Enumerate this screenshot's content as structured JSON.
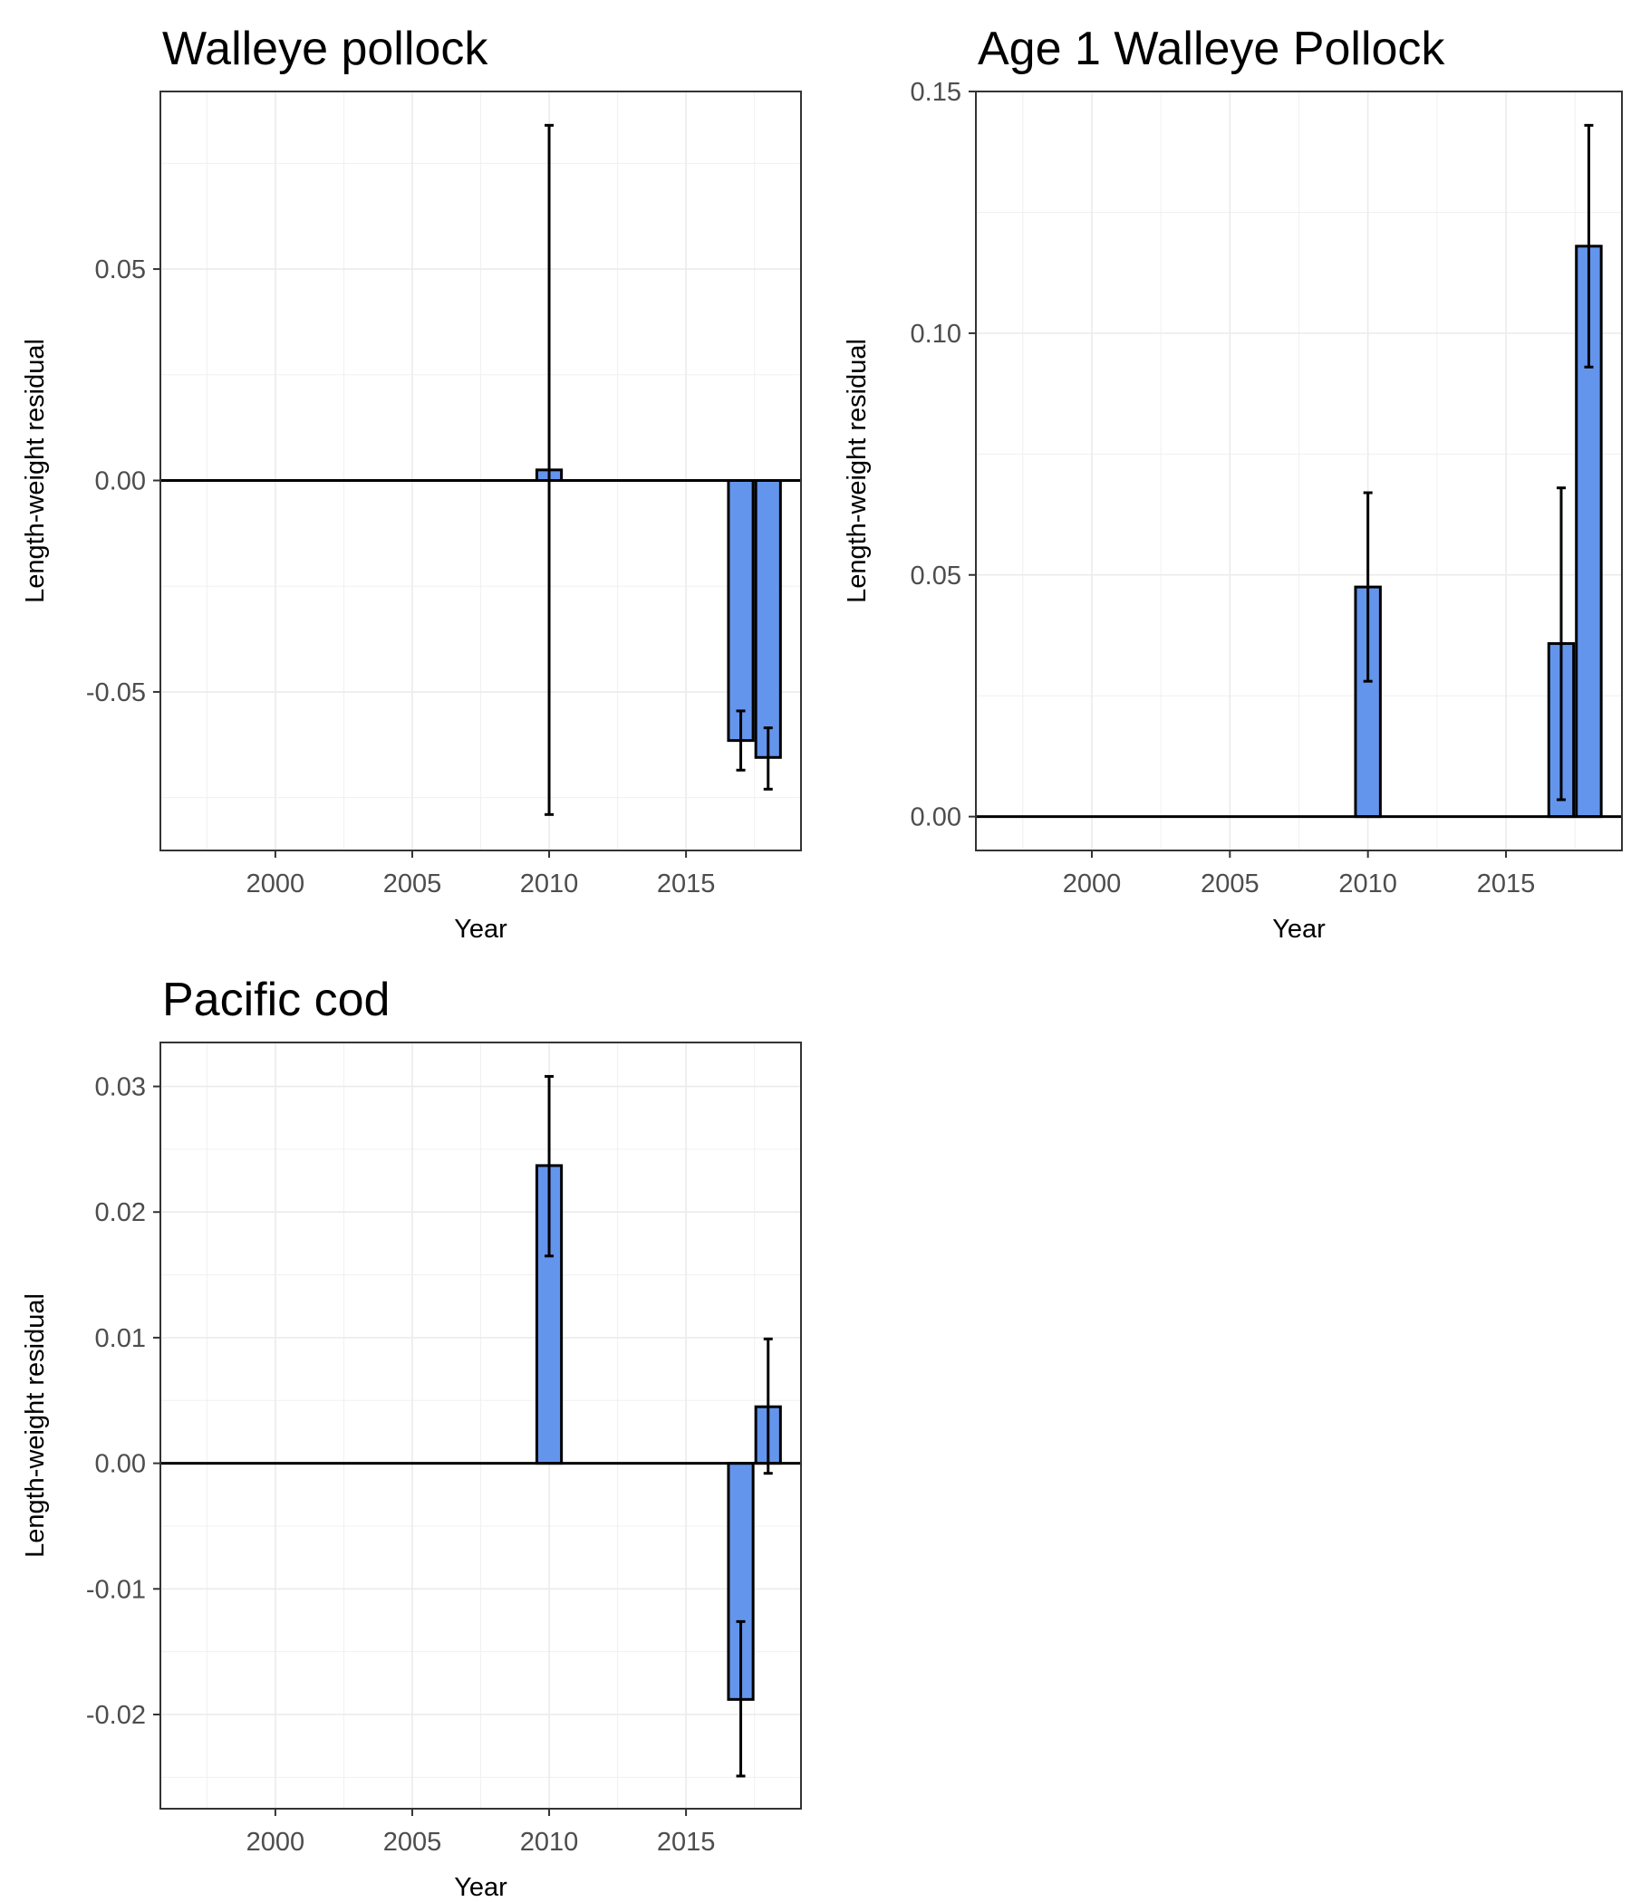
{
  "chart_data": [
    {
      "type": "bar",
      "title": "Walleye pollock",
      "xlabel": "Year",
      "ylabel": "Length-weight residual",
      "xlim": [
        1995.8,
        2019.2
      ],
      "ylim": [
        -0.0875,
        0.092
      ],
      "xticks": [
        2000,
        2005,
        2010,
        2015
      ],
      "xtick_labels": [
        "2000",
        "2005",
        "2010",
        "2015"
      ],
      "yticks": [
        -0.05,
        0,
        0.05
      ],
      "ytick_labels": [
        "-0.05",
        "0.00",
        "0.05"
      ],
      "grid": true,
      "bar_color": "#6495ed",
      "bars": [
        {
          "year": 2010,
          "value": 0.0025,
          "lower": -0.079,
          "upper": 0.084
        },
        {
          "year": 2017,
          "value": -0.0615,
          "lower": -0.0685,
          "upper": -0.0545
        },
        {
          "year": 2018,
          "value": -0.0655,
          "lower": -0.073,
          "upper": -0.0585
        }
      ]
    },
    {
      "type": "bar",
      "title": "Age 1 Walleye Pollock",
      "xlabel": "Year",
      "ylabel": "Length-weight residual",
      "xlim": [
        1995.8,
        2019.2
      ],
      "ylim": [
        -0.007,
        0.15
      ],
      "xticks": [
        2000,
        2005,
        2010,
        2015
      ],
      "xtick_labels": [
        "2000",
        "2005",
        "2010",
        "2015"
      ],
      "yticks": [
        0,
        0.05,
        0.1,
        0.15
      ],
      "ytick_labels": [
        "0.00",
        "0.05",
        "0.10",
        "0.15"
      ],
      "grid": true,
      "bar_color": "#6495ed",
      "bars": [
        {
          "year": 2010,
          "value": 0.0475,
          "lower": 0.028,
          "upper": 0.067
        },
        {
          "year": 2017,
          "value": 0.0358,
          "lower": 0.0035,
          "upper": 0.068
        },
        {
          "year": 2018,
          "value": 0.118,
          "lower": 0.093,
          "upper": 0.143
        }
      ]
    },
    {
      "type": "bar",
      "title": "Pacific cod",
      "xlabel": "Year",
      "ylabel": "Length-weight residual",
      "xlim": [
        1995.8,
        2019.2
      ],
      "ylim": [
        -0.0275,
        0.0335
      ],
      "xticks": [
        2000,
        2005,
        2010,
        2015
      ],
      "xtick_labels": [
        "2000",
        "2005",
        "2010",
        "2015"
      ],
      "yticks": [
        -0.02,
        -0.01,
        0,
        0.01,
        0.02,
        0.03
      ],
      "ytick_labels": [
        "-0.02",
        "-0.01",
        "0.00",
        "0.01",
        "0.02",
        "0.03"
      ],
      "grid": true,
      "bar_color": "#6495ed",
      "bars": [
        {
          "year": 2010,
          "value": 0.0237,
          "lower": 0.0165,
          "upper": 0.0308
        },
        {
          "year": 2017,
          "value": -0.0188,
          "lower": -0.0249,
          "upper": -0.0126
        },
        {
          "year": 2018,
          "value": 0.0045,
          "lower": -0.0008,
          "upper": 0.0099
        }
      ]
    }
  ]
}
